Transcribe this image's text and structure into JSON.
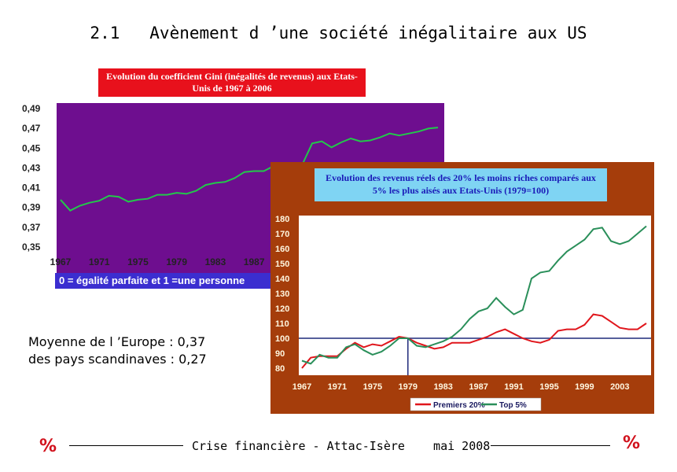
{
  "slide_title": "2.1   Avènement d ’une société inégalitaire aux US",
  "europe": {
    "line1": "Moyenne de l ’Europe : 0,37",
    "line2": "des pays scandinaves : 0,27"
  },
  "footer": {
    "left_mark": "%",
    "text": "Crise financière - Attac-Isère    mai 2008",
    "right_mark": "%"
  },
  "colors": {
    "accent_red": "#d1111c",
    "gini_bg": "#6e0e8f",
    "gini_line": "#22c84a",
    "income_bg": "#a53d0b",
    "income_title_bg": "#7fd4f3"
  },
  "chart_data": [
    {
      "type": "line",
      "title": "Evolution du coefficient Gini (inégalités de revenus) aux Etats-Unis de 1967 à 2006",
      "footnote": "0 = égalité parfaite et 1 =une personne",
      "ylim": [
        0.35,
        0.49
      ],
      "ytick_labels": [
        "0,35",
        "0,37",
        "0,39",
        "0,41",
        "0,43",
        "0,45",
        "0,47",
        "0,49"
      ],
      "xtick_labels": [
        "1967",
        "1971",
        "1975",
        "1979",
        "1983",
        "1987"
      ],
      "x": [
        1967,
        1968,
        1969,
        1970,
        1971,
        1972,
        1973,
        1974,
        1975,
        1976,
        1977,
        1978,
        1979,
        1980,
        1981,
        1982,
        1983,
        1984,
        1985,
        1986,
        1987,
        1988,
        1989,
        1990,
        1991,
        1992,
        1993,
        1994,
        1995,
        1996,
        1997,
        1998,
        1999,
        2000,
        2001,
        2002,
        2003,
        2004,
        2005,
        2006
      ],
      "series": [
        {
          "values": [
            0.397,
            0.386,
            0.391,
            0.394,
            0.396,
            0.401,
            0.4,
            0.395,
            0.397,
            0.398,
            0.402,
            0.402,
            0.404,
            0.403,
            0.406,
            0.412,
            0.414,
            0.415,
            0.419,
            0.425,
            0.426,
            0.426,
            0.431,
            0.428,
            0.428,
            0.433,
            0.454,
            0.456,
            0.45,
            0.455,
            0.459,
            0.456,
            0.457,
            0.46,
            0.464,
            0.462,
            0.464,
            0.466,
            0.469,
            0.47
          ]
        }
      ],
      "grid": false
    },
    {
      "type": "line",
      "title": "Evolution des revenus réels des 20% les moins riches comparés aux 5% les plus aisés aux Etats-Unis (1979=100)",
      "ylim": [
        80,
        180
      ],
      "ytick_labels": [
        "80",
        "90",
        "100",
        "110",
        "120",
        "130",
        "140",
        "150",
        "160",
        "170",
        "180"
      ],
      "xtick_labels": [
        "1967",
        "1971",
        "1975",
        "1979",
        "1983",
        "1987",
        "1991",
        "1995",
        "1999",
        "2003"
      ],
      "x": [
        1967,
        1968,
        1969,
        1970,
        1971,
        1972,
        1973,
        1974,
        1975,
        1976,
        1977,
        1978,
        1979,
        1980,
        1981,
        1982,
        1983,
        1984,
        1985,
        1986,
        1987,
        1988,
        1989,
        1990,
        1991,
        1992,
        1993,
        1994,
        1995,
        1996,
        1997,
        1998,
        1999,
        2000,
        2001,
        2002,
        2003,
        2004,
        2005,
        2006
      ],
      "series": [
        {
          "name": "Premiers 20%",
          "color": "#e0161c",
          "values": [
            80,
            87,
            88,
            88,
            88,
            93,
            97,
            94,
            96,
            95,
            98,
            101,
            100,
            97,
            95,
            93,
            94,
            97,
            97,
            97,
            99,
            101,
            104,
            106,
            103,
            100,
            98,
            97,
            99,
            105,
            106,
            106,
            109,
            116,
            115,
            111,
            107,
            106,
            106,
            110
          ]
        },
        {
          "name": "Top 5%",
          "color": "#2a8f5a",
          "values": [
            85,
            83,
            89,
            87,
            87,
            94,
            96,
            92,
            89,
            91,
            95,
            100,
            100,
            95,
            94,
            96,
            98,
            101,
            106,
            113,
            118,
            120,
            127,
            121,
            116,
            119,
            140,
            144,
            145,
            152,
            158,
            162,
            166,
            173,
            174,
            165,
            163,
            165,
            170,
            175
          ]
        }
      ],
      "reference_line": {
        "y": 100,
        "x": 1979
      },
      "legend": "bottom",
      "grid": false
    }
  ]
}
